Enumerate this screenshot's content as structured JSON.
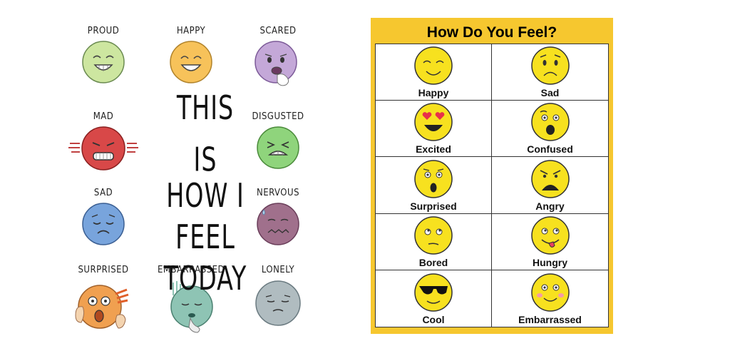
{
  "poster": {
    "title_lines": [
      "THIS IS",
      "HOW I",
      "FEEL",
      "TODAY"
    ],
    "emotions": [
      {
        "label": "PROUD",
        "color": "#cde6a0"
      },
      {
        "label": "HAPPY",
        "color": "#f7c25a"
      },
      {
        "label": "SCARED",
        "color": "#c4a8d8"
      },
      {
        "label": "MAD",
        "color": "#d84848"
      },
      {
        "label": "DISGUSTED",
        "color": "#8fd47c"
      },
      {
        "label": "SAD",
        "color": "#78a4dc"
      },
      {
        "label": "NERVOUS",
        "color": "#a0708c"
      },
      {
        "label": "SURPRISED",
        "color": "#f0a050"
      },
      {
        "label": "EMBARRASSED",
        "color": "#8ec4b4"
      },
      {
        "label": "LONELY",
        "color": "#b0bcc0"
      }
    ]
  },
  "chart": {
    "title": "How Do You Feel?",
    "border_color": "#f6c72f",
    "cells": [
      {
        "label": "Happy"
      },
      {
        "label": "Sad"
      },
      {
        "label": "Excited"
      },
      {
        "label": "Confused"
      },
      {
        "label": "Surprised"
      },
      {
        "label": "Angry"
      },
      {
        "label": "Bored"
      },
      {
        "label": "Hungry"
      },
      {
        "label": "Cool"
      },
      {
        "label": "Embarrassed"
      }
    ]
  }
}
